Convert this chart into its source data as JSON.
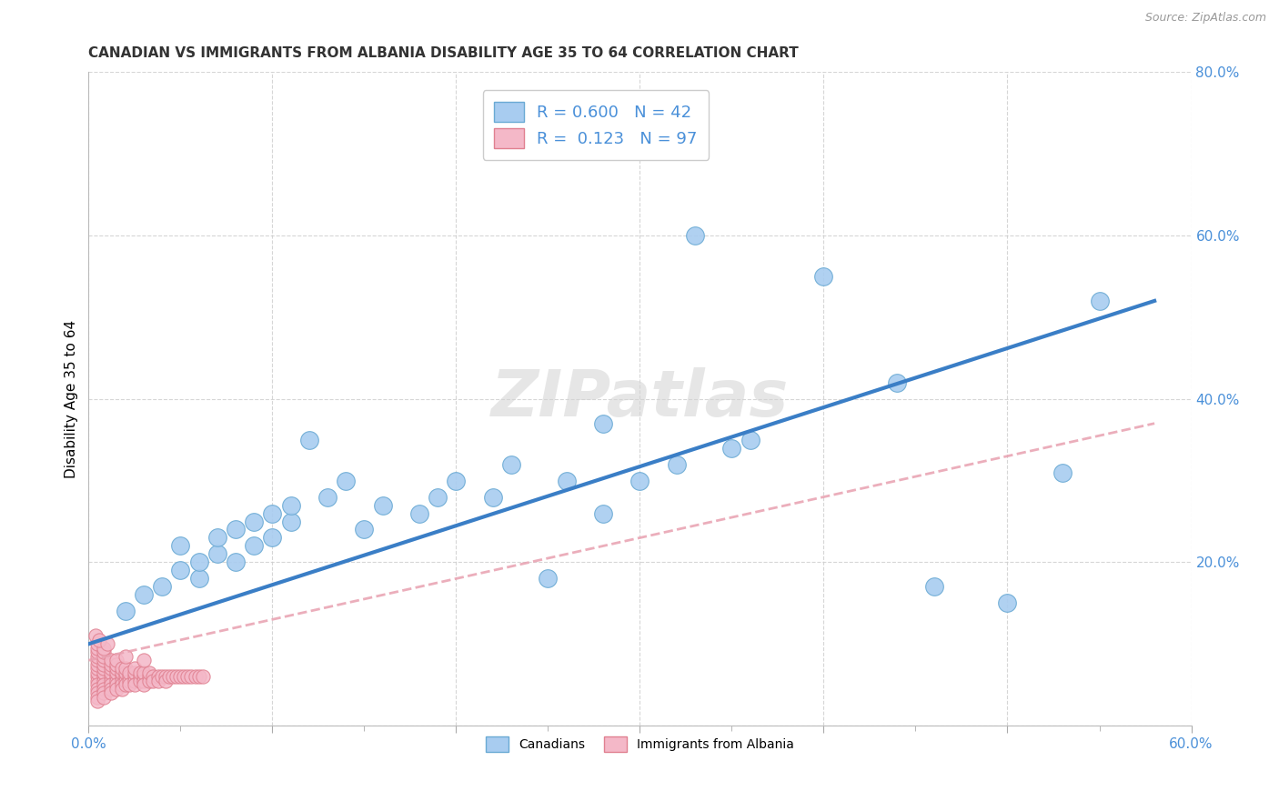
{
  "title": "CANADIAN VS IMMIGRANTS FROM ALBANIA DISABILITY AGE 35 TO 64 CORRELATION CHART",
  "source_text": "Source: ZipAtlas.com",
  "ylabel": "Disability Age 35 to 64",
  "xlim": [
    0.0,
    0.6
  ],
  "ylim": [
    0.0,
    0.8
  ],
  "legend_canadian_R": "0.600",
  "legend_canadian_N": "42",
  "legend_immigrant_R": "0.123",
  "legend_immigrant_N": "97",
  "canadian_color": "#A8CCF0",
  "canadian_edge_color": "#6AAAD4",
  "immigrant_color": "#F4B8C8",
  "immigrant_edge_color": "#E08090",
  "canadian_line_color": "#3A7EC6",
  "immigrant_line_color": "#E8A0B0",
  "watermark": "ZIPatlas",
  "background_color": "#FFFFFF",
  "grid_color": "#CCCCCC",
  "tick_color": "#4A90D9",
  "canadian_scatter": [
    [
      0.02,
      0.14
    ],
    [
      0.03,
      0.16
    ],
    [
      0.04,
      0.17
    ],
    [
      0.05,
      0.19
    ],
    [
      0.05,
      0.22
    ],
    [
      0.06,
      0.18
    ],
    [
      0.06,
      0.2
    ],
    [
      0.07,
      0.21
    ],
    [
      0.07,
      0.23
    ],
    [
      0.08,
      0.2
    ],
    [
      0.08,
      0.24
    ],
    [
      0.09,
      0.22
    ],
    [
      0.09,
      0.25
    ],
    [
      0.1,
      0.23
    ],
    [
      0.1,
      0.26
    ],
    [
      0.11,
      0.25
    ],
    [
      0.11,
      0.27
    ],
    [
      0.12,
      0.35
    ],
    [
      0.13,
      0.28
    ],
    [
      0.14,
      0.3
    ],
    [
      0.15,
      0.24
    ],
    [
      0.16,
      0.27
    ],
    [
      0.18,
      0.26
    ],
    [
      0.19,
      0.28
    ],
    [
      0.2,
      0.3
    ],
    [
      0.22,
      0.28
    ],
    [
      0.23,
      0.32
    ],
    [
      0.25,
      0.18
    ],
    [
      0.26,
      0.3
    ],
    [
      0.28,
      0.26
    ],
    [
      0.28,
      0.37
    ],
    [
      0.3,
      0.3
    ],
    [
      0.32,
      0.32
    ],
    [
      0.33,
      0.6
    ],
    [
      0.35,
      0.34
    ],
    [
      0.36,
      0.35
    ],
    [
      0.4,
      0.55
    ],
    [
      0.44,
      0.42
    ],
    [
      0.46,
      0.17
    ],
    [
      0.5,
      0.15
    ],
    [
      0.53,
      0.31
    ],
    [
      0.55,
      0.52
    ]
  ],
  "immigrant_scatter": [
    [
      0.005,
      0.06
    ],
    [
      0.005,
      0.055
    ],
    [
      0.005,
      0.065
    ],
    [
      0.005,
      0.05
    ],
    [
      0.005,
      0.07
    ],
    [
      0.005,
      0.075
    ],
    [
      0.005,
      0.045
    ],
    [
      0.005,
      0.08
    ],
    [
      0.005,
      0.085
    ],
    [
      0.005,
      0.09
    ],
    [
      0.005,
      0.04
    ],
    [
      0.005,
      0.095
    ],
    [
      0.005,
      0.035
    ],
    [
      0.005,
      0.1
    ],
    [
      0.005,
      0.03
    ],
    [
      0.008,
      0.06
    ],
    [
      0.008,
      0.055
    ],
    [
      0.008,
      0.065
    ],
    [
      0.008,
      0.05
    ],
    [
      0.008,
      0.07
    ],
    [
      0.008,
      0.075
    ],
    [
      0.008,
      0.045
    ],
    [
      0.008,
      0.08
    ],
    [
      0.008,
      0.085
    ],
    [
      0.008,
      0.09
    ],
    [
      0.008,
      0.04
    ],
    [
      0.008,
      0.095
    ],
    [
      0.008,
      0.035
    ],
    [
      0.012,
      0.06
    ],
    [
      0.012,
      0.055
    ],
    [
      0.012,
      0.065
    ],
    [
      0.012,
      0.05
    ],
    [
      0.012,
      0.07
    ],
    [
      0.012,
      0.075
    ],
    [
      0.012,
      0.045
    ],
    [
      0.012,
      0.08
    ],
    [
      0.012,
      0.04
    ],
    [
      0.015,
      0.06
    ],
    [
      0.015,
      0.055
    ],
    [
      0.015,
      0.065
    ],
    [
      0.015,
      0.05
    ],
    [
      0.015,
      0.07
    ],
    [
      0.015,
      0.075
    ],
    [
      0.015,
      0.045
    ],
    [
      0.015,
      0.08
    ],
    [
      0.018,
      0.06
    ],
    [
      0.018,
      0.055
    ],
    [
      0.018,
      0.065
    ],
    [
      0.018,
      0.05
    ],
    [
      0.018,
      0.07
    ],
    [
      0.018,
      0.045
    ],
    [
      0.02,
      0.06
    ],
    [
      0.02,
      0.055
    ],
    [
      0.02,
      0.065
    ],
    [
      0.02,
      0.05
    ],
    [
      0.02,
      0.07
    ],
    [
      0.022,
      0.06
    ],
    [
      0.022,
      0.055
    ],
    [
      0.022,
      0.065
    ],
    [
      0.022,
      0.05
    ],
    [
      0.025,
      0.06
    ],
    [
      0.025,
      0.055
    ],
    [
      0.025,
      0.065
    ],
    [
      0.025,
      0.05
    ],
    [
      0.025,
      0.07
    ],
    [
      0.028,
      0.06
    ],
    [
      0.028,
      0.055
    ],
    [
      0.028,
      0.065
    ],
    [
      0.03,
      0.06
    ],
    [
      0.03,
      0.055
    ],
    [
      0.03,
      0.065
    ],
    [
      0.03,
      0.05
    ],
    [
      0.033,
      0.06
    ],
    [
      0.033,
      0.055
    ],
    [
      0.033,
      0.065
    ],
    [
      0.035,
      0.06
    ],
    [
      0.035,
      0.055
    ],
    [
      0.038,
      0.06
    ],
    [
      0.038,
      0.055
    ],
    [
      0.04,
      0.06
    ],
    [
      0.042,
      0.06
    ],
    [
      0.042,
      0.055
    ],
    [
      0.044,
      0.06
    ],
    [
      0.046,
      0.06
    ],
    [
      0.048,
      0.06
    ],
    [
      0.05,
      0.06
    ],
    [
      0.052,
      0.06
    ],
    [
      0.054,
      0.06
    ],
    [
      0.056,
      0.06
    ],
    [
      0.058,
      0.06
    ],
    [
      0.06,
      0.06
    ],
    [
      0.062,
      0.06
    ],
    [
      0.004,
      0.11
    ],
    [
      0.006,
      0.105
    ],
    [
      0.01,
      0.1
    ],
    [
      0.02,
      0.085
    ],
    [
      0.03,
      0.08
    ]
  ],
  "canadian_line_x": [
    0.0,
    0.58
  ],
  "canadian_line_y": [
    0.1,
    0.52
  ],
  "immigrant_line_x": [
    0.0,
    0.58
  ],
  "immigrant_line_y": [
    0.08,
    0.37
  ],
  "title_fontsize": 11,
  "tick_fontsize": 11,
  "legend_fontsize": 13,
  "axis_label_fontsize": 11,
  "marker_size_canadian": 200,
  "marker_size_immigrant": 120
}
